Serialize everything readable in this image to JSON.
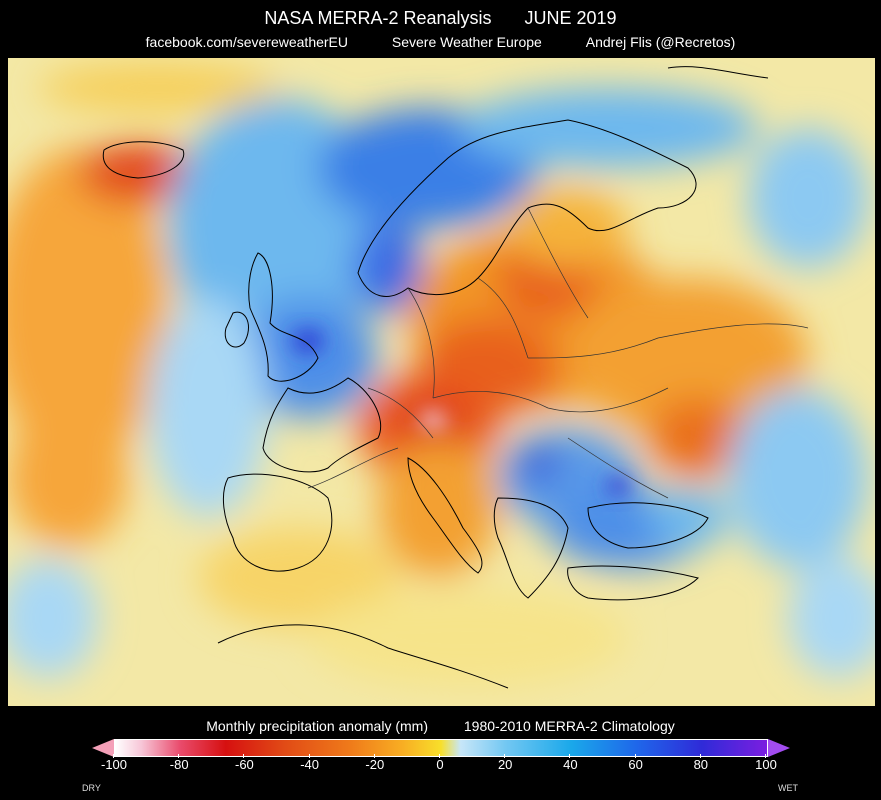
{
  "header": {
    "title_left": "NASA MERRA-2 Reanalysis",
    "title_right": "JUNE 2019",
    "credit_1": "facebook.com/severeweatherEU",
    "credit_2": "Severe Weather Europe",
    "credit_3": "Andrej Flis (@Recretos)"
  },
  "legend": {
    "title_left": "Monthly precipitation anomaly (mm)",
    "title_right": "1980-2010 MERRA-2  Climatology",
    "ticks": [
      "-100",
      "-80",
      "-60",
      "-40",
      "-20",
      "0",
      "20",
      "40",
      "60",
      "80",
      "100"
    ],
    "range": [
      -100,
      100
    ],
    "dry_label": "DRY",
    "wet_label": "WET",
    "colors": {
      "dry_extreme": "#ffffff",
      "dry_strong": "#d61010",
      "dry_moderate": "#ef7a1a",
      "dry_weak": "#f8df2b",
      "neutral": "#f3e8a6",
      "wet_weak": "#72c7f2",
      "wet_moderate": "#1aa8ea",
      "wet_strong": "#1f67ea",
      "wet_extreme": "#7b1ee0"
    }
  }
}
